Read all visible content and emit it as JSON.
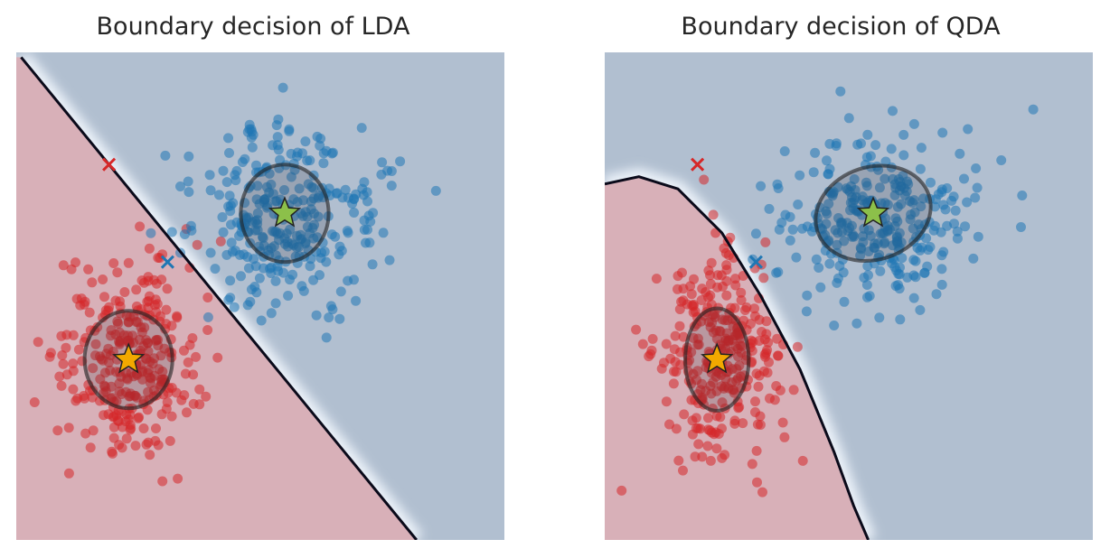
{
  "figure": {
    "panels": [
      {
        "id": "lda",
        "title": "Boundary decision of LDA"
      },
      {
        "id": "qda",
        "title": "Boundary decision of QDA"
      }
    ]
  },
  "colors": {
    "class_a": "#d62728",
    "class_b": "#1f77b4",
    "region_a": "#d8b0b8",
    "region_b": "#b1bfd0",
    "boundary": "#0a0a1a",
    "star_a": "#f2a900",
    "star_b": "#8cc04a"
  },
  "chart_data": [
    {
      "type": "scatter",
      "title": "Boundary decision of LDA",
      "xlim": [
        0,
        1
      ],
      "ylim": [
        0,
        1
      ],
      "grid": false,
      "series": [
        {
          "class": "a",
          "center": [
            0.23,
            0.37
          ],
          "sd": [
            0.07,
            0.1
          ],
          "n": 300,
          "marker": "circle"
        },
        {
          "class": "b",
          "center": [
            0.55,
            0.66
          ],
          "sd": [
            0.1,
            0.09
          ],
          "n": 300,
          "marker": "circle"
        }
      ],
      "means": [
        {
          "class": "a",
          "x": 0.23,
          "y": 0.37,
          "marker": "star"
        },
        {
          "class": "b",
          "x": 0.55,
          "y": 0.67,
          "marker": "star"
        }
      ],
      "covariance_ellipses": [
        {
          "class": "a",
          "cx": 0.23,
          "cy": 0.37,
          "rx": 0.09,
          "ry": 0.1,
          "angle": 0
        },
        {
          "class": "b",
          "cx": 0.55,
          "cy": 0.67,
          "rx": 0.09,
          "ry": 0.1,
          "angle": 0
        }
      ],
      "misclassified": [
        {
          "class": "a",
          "x": 0.19,
          "y": 0.77,
          "marker": "x"
        },
        {
          "class": "b",
          "x": 0.31,
          "y": 0.57,
          "marker": "x"
        }
      ],
      "boundary": {
        "kind": "linear",
        "points": [
          [
            0.01,
            0.99
          ],
          [
            0.82,
            0.0
          ]
        ]
      }
    },
    {
      "type": "scatter",
      "title": "Boundary decision of QDA",
      "xlim": [
        0,
        1
      ],
      "ylim": [
        0,
        1
      ],
      "grid": false,
      "series": [
        {
          "class": "a",
          "center": [
            0.23,
            0.37
          ],
          "sd": [
            0.06,
            0.1
          ],
          "n": 300,
          "marker": "circle"
        },
        {
          "class": "b",
          "center": [
            0.55,
            0.66
          ],
          "sd": [
            0.1,
            0.08
          ],
          "n": 300,
          "marker": "circle"
        }
      ],
      "means": [
        {
          "class": "a",
          "x": 0.23,
          "y": 0.37,
          "marker": "star"
        },
        {
          "class": "b",
          "x": 0.55,
          "y": 0.67,
          "marker": "star"
        }
      ],
      "covariance_ellipses": [
        {
          "class": "a",
          "cx": 0.23,
          "cy": 0.37,
          "rx": 0.065,
          "ry": 0.105,
          "angle": 0
        },
        {
          "class": "b",
          "cx": 0.55,
          "cy": 0.67,
          "rx": 0.12,
          "ry": 0.095,
          "angle": 18
        }
      ],
      "misclassified": [
        {
          "class": "a",
          "x": 0.19,
          "y": 0.77,
          "marker": "x"
        },
        {
          "class": "b",
          "x": 0.31,
          "y": 0.57,
          "marker": "x"
        }
      ],
      "boundary": {
        "kind": "quadratic",
        "points": [
          [
            0.0,
            0.73
          ],
          [
            0.07,
            0.745
          ],
          [
            0.15,
            0.72
          ],
          [
            0.24,
            0.63
          ],
          [
            0.32,
            0.5
          ],
          [
            0.4,
            0.35
          ],
          [
            0.47,
            0.18
          ],
          [
            0.51,
            0.07
          ],
          [
            0.54,
            0.0
          ]
        ]
      }
    }
  ]
}
